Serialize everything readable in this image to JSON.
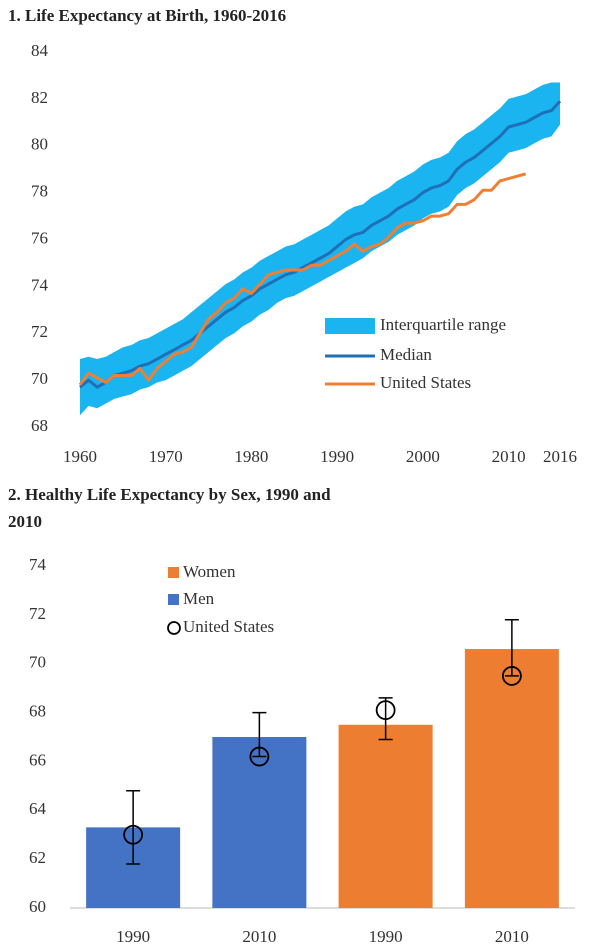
{
  "chart_data": [
    {
      "type": "line",
      "title": "1. Life Expectancy at Birth, 1960-2016",
      "x": [
        1960,
        1961,
        1962,
        1963,
        1964,
        1965,
        1966,
        1967,
        1968,
        1969,
        1970,
        1971,
        1972,
        1973,
        1974,
        1975,
        1976,
        1977,
        1978,
        1979,
        1980,
        1981,
        1982,
        1983,
        1984,
        1985,
        1986,
        1987,
        1988,
        1989,
        1990,
        1991,
        1992,
        1993,
        1994,
        1995,
        1996,
        1997,
        1998,
        1999,
        2000,
        2001,
        2002,
        2003,
        2004,
        2005,
        2006,
        2007,
        2008,
        2009,
        2010,
        2011,
        2012,
        2013,
        2014,
        2015,
        2016
      ],
      "series": [
        {
          "name": "Interquartile range",
          "color": "#1ab5f0",
          "low": [
            68.5,
            68.9,
            68.8,
            69.0,
            69.2,
            69.3,
            69.4,
            69.6,
            69.7,
            69.9,
            70.0,
            70.2,
            70.4,
            70.6,
            70.9,
            71.2,
            71.5,
            71.8,
            72.0,
            72.3,
            72.5,
            72.8,
            73.0,
            73.3,
            73.5,
            73.6,
            73.8,
            74.0,
            74.2,
            74.4,
            74.6,
            74.8,
            75.0,
            75.2,
            75.5,
            75.7,
            75.9,
            76.2,
            76.4,
            76.6,
            76.9,
            77.1,
            77.2,
            77.4,
            77.9,
            78.2,
            78.4,
            78.7,
            79.0,
            79.3,
            79.7,
            79.8,
            79.9,
            80.1,
            80.3,
            80.4,
            80.9
          ],
          "high": [
            70.9,
            71.0,
            70.9,
            71.0,
            71.2,
            71.4,
            71.5,
            71.7,
            71.8,
            72.0,
            72.2,
            72.4,
            72.6,
            72.9,
            73.2,
            73.5,
            73.8,
            74.1,
            74.3,
            74.6,
            74.8,
            75.1,
            75.3,
            75.5,
            75.7,
            75.8,
            76.0,
            76.2,
            76.4,
            76.6,
            76.9,
            77.2,
            77.4,
            77.5,
            77.8,
            78.0,
            78.2,
            78.5,
            78.7,
            78.9,
            79.2,
            79.4,
            79.5,
            79.7,
            80.2,
            80.5,
            80.7,
            81.0,
            81.3,
            81.6,
            82.0,
            82.1,
            82.2,
            82.4,
            82.6,
            82.7,
            82.7
          ]
        },
        {
          "name": "Median",
          "color": "#1f6fb9",
          "values": [
            69.7,
            70.0,
            69.7,
            69.9,
            70.2,
            70.3,
            70.4,
            70.6,
            70.7,
            70.9,
            71.1,
            71.3,
            71.5,
            71.7,
            72.0,
            72.3,
            72.6,
            72.9,
            73.1,
            73.4,
            73.6,
            73.9,
            74.1,
            74.3,
            74.5,
            74.6,
            74.8,
            75.0,
            75.2,
            75.4,
            75.7,
            76.0,
            76.2,
            76.3,
            76.6,
            76.8,
            77.0,
            77.3,
            77.5,
            77.7,
            78.0,
            78.2,
            78.3,
            78.5,
            79.0,
            79.3,
            79.5,
            79.8,
            80.1,
            80.4,
            80.8,
            80.9,
            81.0,
            81.2,
            81.4,
            81.5,
            81.9
          ]
        },
        {
          "name": "United States",
          "color": "#f07f33",
          "values": [
            69.8,
            70.3,
            70.1,
            69.9,
            70.2,
            70.2,
            70.2,
            70.5,
            70.0,
            70.5,
            70.8,
            71.1,
            71.2,
            71.4,
            72.0,
            72.6,
            72.9,
            73.3,
            73.5,
            73.9,
            73.7,
            74.1,
            74.5,
            74.6,
            74.7,
            74.7,
            74.7,
            74.9,
            74.9,
            75.1,
            75.3,
            75.5,
            75.8,
            75.5,
            75.7,
            75.8,
            76.1,
            76.5,
            76.7,
            76.7,
            76.8,
            77.0,
            77.0,
            77.1,
            77.5,
            77.5,
            77.7,
            78.1,
            78.1,
            78.5,
            78.6,
            78.7,
            78.8,
            null,
            null,
            null,
            null
          ]
        }
      ],
      "xlim": [
        1960,
        2016
      ],
      "xticks": [
        1960,
        1970,
        1980,
        1990,
        2000,
        2010,
        2016
      ],
      "ylim": [
        68,
        84
      ],
      "yticks": [
        68,
        70,
        72,
        74,
        76,
        78,
        80,
        82,
        84
      ],
      "legend": "lower right"
    },
    {
      "type": "bar",
      "title": "2. Healthy Life Expectancy by Sex, 1990 and 2010",
      "categories": [
        "1990",
        "2010",
        "1990",
        "2010"
      ],
      "series": [
        {
          "name": "Women",
          "color": "#ed7d31",
          "values": [
            null,
            null,
            67.5,
            70.6
          ],
          "error_low": [
            null,
            null,
            66.9,
            69.5
          ],
          "error_high": [
            null,
            null,
            68.6,
            71.8
          ]
        },
        {
          "name": "Men",
          "color": "#4472c4",
          "values": [
            63.3,
            67.0,
            null,
            null
          ],
          "error_low": [
            61.8,
            66.2,
            null,
            null
          ],
          "error_high": [
            64.8,
            68.0,
            null,
            null
          ]
        },
        {
          "name": "United States",
          "marker": "circle",
          "color": "#000000",
          "values": [
            63.0,
            66.2,
            68.1,
            69.5
          ]
        }
      ],
      "ylim": [
        60,
        74
      ],
      "yticks": [
        60,
        62,
        64,
        66,
        68,
        70,
        72,
        74
      ],
      "legend": "upper left"
    }
  ]
}
